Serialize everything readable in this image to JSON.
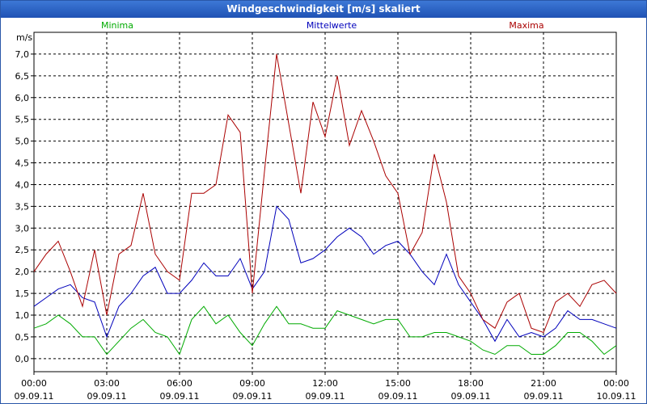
{
  "window": {
    "title": "Windgeschwindigkeit [m/s] skaliert"
  },
  "chart_data": {
    "type": "line",
    "title": "Windgeschwindigkeit [m/s] skaliert",
    "ylabel": "m/s",
    "ylim": [
      -0.3,
      7.5
    ],
    "xlim": [
      0,
      24
    ],
    "grid": true,
    "legend": "top",
    "y_ticks": [
      "0,0",
      "0,5",
      "1,0",
      "1,5",
      "2,0",
      "2,5",
      "3,0",
      "3,5",
      "4,0",
      "4,5",
      "5,0",
      "5,5",
      "6,0",
      "6,5",
      "7,0"
    ],
    "x_ticks": [
      {
        "time": "00:00",
        "date": "09.09.11"
      },
      {
        "time": "03:00",
        "date": "09.09.11"
      },
      {
        "time": "06:00",
        "date": "09.09.11"
      },
      {
        "time": "09:00",
        "date": "09.09.11"
      },
      {
        "time": "12:00",
        "date": "09.09.11"
      },
      {
        "time": "15:00",
        "date": "09.09.11"
      },
      {
        "time": "18:00",
        "date": "09.09.11"
      },
      {
        "time": "21:00",
        "date": "09.09.11"
      },
      {
        "time": "00:00",
        "date": "10.09.11"
      }
    ],
    "series": [
      {
        "name": "Minima",
        "color": "#00aa00",
        "x": [
          0,
          0.5,
          1,
          1.5,
          2,
          2.5,
          3,
          3.5,
          4,
          4.5,
          5,
          5.5,
          6,
          6.5,
          7,
          7.5,
          8,
          8.5,
          9,
          9.5,
          10,
          10.5,
          11,
          11.5,
          12,
          12.5,
          13,
          13.5,
          14,
          14.5,
          15,
          15.5,
          16,
          16.5,
          17,
          17.5,
          18,
          18.5,
          19,
          19.5,
          20,
          20.5,
          21,
          21.5,
          22,
          22.5,
          23,
          23.5,
          24
        ],
        "y": [
          0.7,
          0.8,
          1.0,
          0.8,
          0.5,
          0.5,
          0.1,
          0.4,
          0.7,
          0.9,
          0.6,
          0.5,
          0.1,
          0.9,
          1.2,
          0.8,
          1.0,
          0.6,
          0.3,
          0.8,
          1.2,
          0.8,
          0.8,
          0.7,
          0.7,
          1.1,
          1.0,
          0.9,
          0.8,
          0.9,
          0.9,
          0.5,
          0.5,
          0.6,
          0.6,
          0.5,
          0.4,
          0.2,
          0.1,
          0.3,
          0.3,
          0.1,
          0.1,
          0.3,
          0.6,
          0.6,
          0.4,
          0.1,
          0.3
        ]
      },
      {
        "name": "Mittelwerte",
        "color": "#0000bb",
        "x": [
          0,
          0.5,
          1,
          1.5,
          2,
          2.5,
          3,
          3.5,
          4,
          4.5,
          5,
          5.5,
          6,
          6.5,
          7,
          7.5,
          8,
          8.5,
          9,
          9.5,
          10,
          10.5,
          11,
          11.5,
          12,
          12.5,
          13,
          13.5,
          14,
          14.5,
          15,
          15.5,
          16,
          16.5,
          17,
          17.5,
          18,
          18.5,
          19,
          19.5,
          20,
          20.5,
          21,
          21.5,
          22,
          22.5,
          23,
          23.5,
          24
        ],
        "y": [
          1.2,
          1.4,
          1.6,
          1.7,
          1.4,
          1.3,
          0.5,
          1.2,
          1.5,
          1.9,
          2.1,
          1.5,
          1.5,
          1.8,
          2.2,
          1.9,
          1.9,
          2.3,
          1.6,
          2.0,
          3.5,
          3.2,
          2.2,
          2.3,
          2.5,
          2.8,
          3.0,
          2.8,
          2.4,
          2.6,
          2.7,
          2.4,
          2.0,
          1.7,
          2.4,
          1.7,
          1.3,
          0.9,
          0.4,
          0.9,
          0.5,
          0.6,
          0.5,
          0.7,
          1.1,
          0.9,
          0.9,
          0.8,
          0.7
        ]
      },
      {
        "name": "Maxima",
        "color": "#aa0000",
        "x": [
          0,
          0.5,
          1,
          1.5,
          2,
          2.5,
          3,
          3.5,
          4,
          4.5,
          5,
          5.5,
          6,
          6.5,
          7,
          7.5,
          8,
          8.5,
          9,
          9.5,
          10,
          10.5,
          11,
          11.5,
          12,
          12.5,
          13,
          13.5,
          14,
          14.5,
          15,
          15.5,
          16,
          16.5,
          17,
          17.5,
          18,
          18.5,
          19,
          19.5,
          20,
          20.5,
          21,
          21.5,
          22,
          22.5,
          23,
          23.5,
          24
        ],
        "y": [
          2.0,
          2.4,
          2.7,
          2.0,
          1.2,
          2.5,
          1.0,
          2.4,
          2.6,
          3.8,
          2.4,
          2.0,
          1.8,
          3.8,
          3.8,
          4.0,
          5.6,
          5.2,
          1.5,
          4.3,
          7.0,
          5.4,
          3.8,
          5.9,
          5.1,
          6.5,
          4.9,
          5.7,
          5.0,
          4.2,
          3.8,
          2.4,
          2.9,
          4.7,
          3.6,
          1.9,
          1.5,
          0.9,
          0.7,
          1.3,
          1.5,
          0.7,
          0.6,
          1.3,
          1.5,
          1.2,
          1.7,
          1.8,
          1.5
        ]
      }
    ]
  }
}
